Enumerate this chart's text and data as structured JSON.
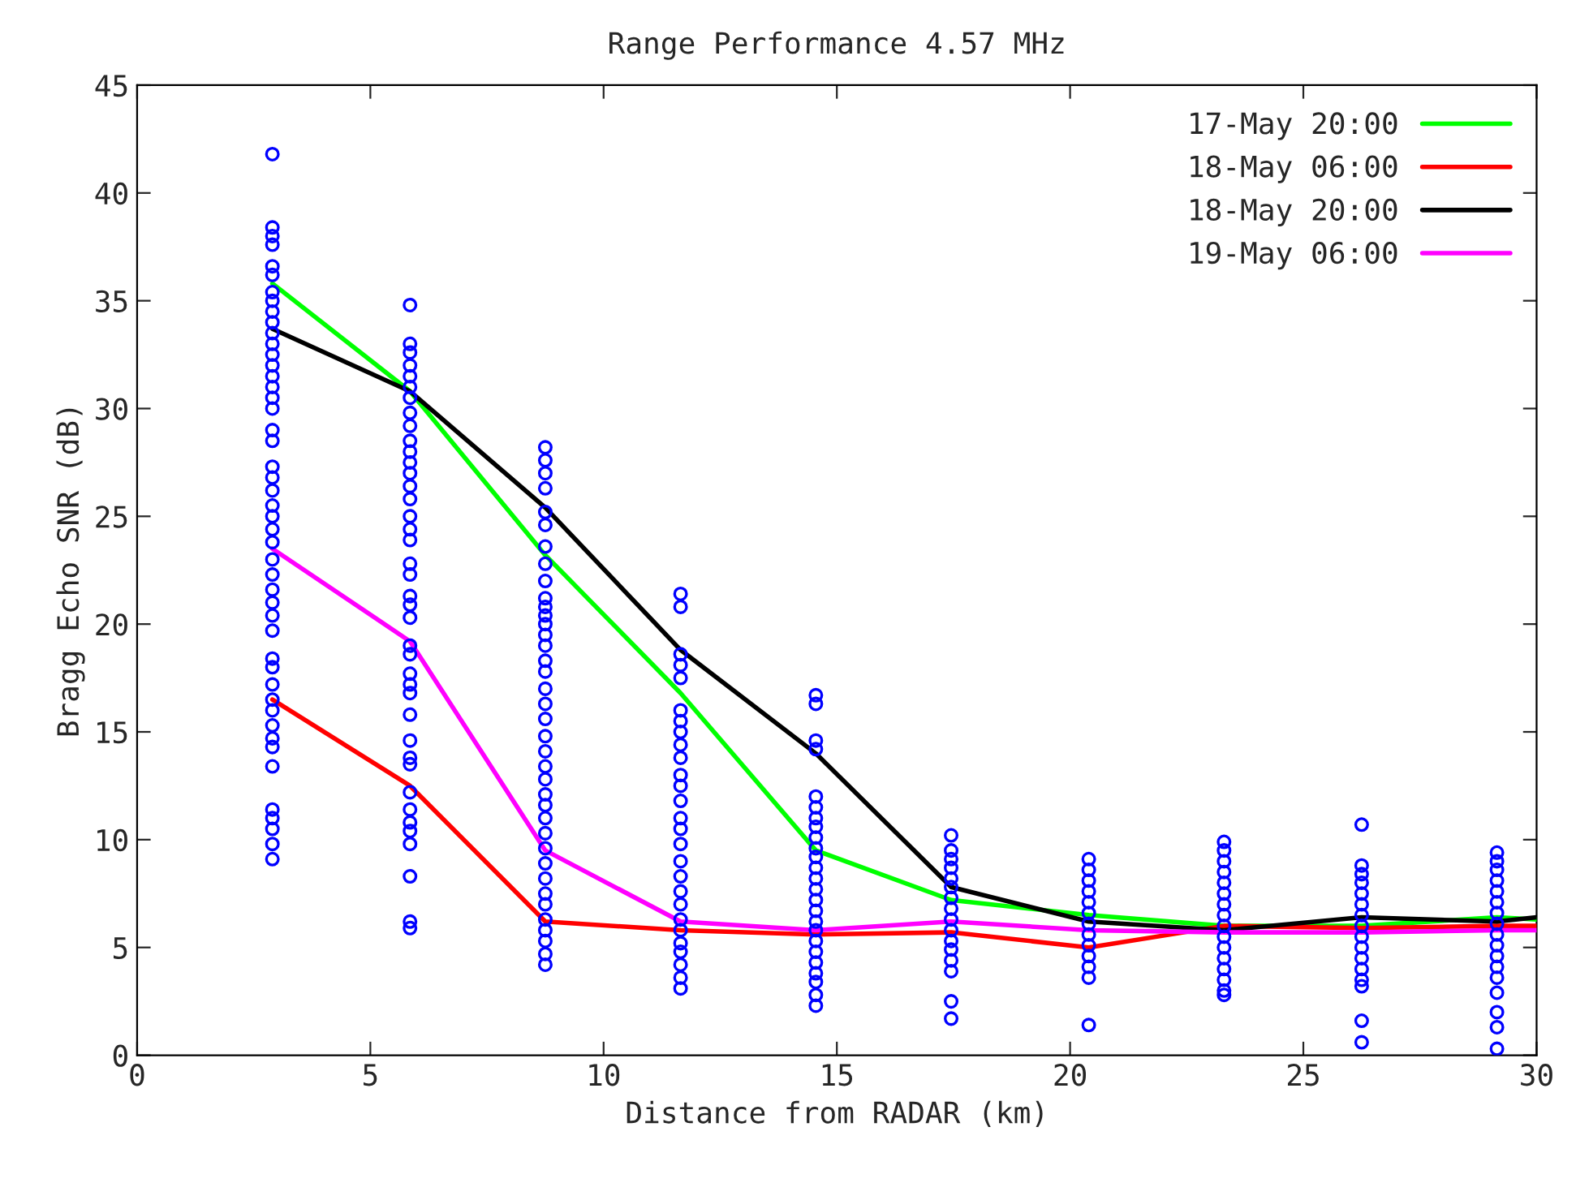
{
  "chart_data": {
    "type": "line",
    "title": "Range Performance 4.57 MHz",
    "xlabel": "Distance from RADAR (km)",
    "ylabel": "Bragg Echo SNR (dB)",
    "xlim": [
      0,
      30
    ],
    "ylim": [
      0,
      45
    ],
    "xticks": [
      0,
      5,
      10,
      15,
      20,
      25,
      30
    ],
    "yticks": [
      0,
      5,
      10,
      15,
      20,
      25,
      30,
      35,
      40,
      45
    ],
    "grid": false,
    "legend": "top right",
    "series": [
      {
        "type": "scatter",
        "marker": "circle",
        "color": "#0000ff",
        "x": [
          2.9,
          2.9,
          2.9,
          2.9,
          2.9,
          2.9,
          2.9,
          2.9,
          2.9,
          2.9,
          2.9,
          2.9,
          2.9,
          2.9,
          2.9,
          2.9,
          2.9,
          2.9,
          2.9,
          2.9,
          2.9,
          2.9,
          2.9,
          2.9,
          2.9,
          2.9,
          2.9,
          2.9,
          2.9,
          2.9,
          2.9,
          2.9,
          2.9,
          2.9,
          2.9,
          2.9,
          2.9,
          2.9,
          2.9,
          2.9,
          2.9,
          2.9,
          2.9,
          2.9,
          2.9,
          2.9,
          2.9,
          5.85,
          5.85,
          5.85,
          5.85,
          5.85,
          5.85,
          5.85,
          5.85,
          5.85,
          5.85,
          5.85,
          5.85,
          5.85,
          5.85,
          5.85,
          5.85,
          5.85,
          5.85,
          5.85,
          5.85,
          5.85,
          5.85,
          5.85,
          5.85,
          5.85,
          5.85,
          5.85,
          5.85,
          5.85,
          5.85,
          5.85,
          5.85,
          5.85,
          5.85,
          5.85,
          5.85,
          5.85,
          5.85,
          5.85,
          5.85,
          8.75,
          8.75,
          8.75,
          8.75,
          8.75,
          8.75,
          8.75,
          8.75,
          8.75,
          8.75,
          8.75,
          8.75,
          8.75,
          8.75,
          8.75,
          8.75,
          8.75,
          8.75,
          8.75,
          8.75,
          8.75,
          8.75,
          8.75,
          8.75,
          8.75,
          8.75,
          8.75,
          8.75,
          8.75,
          8.75,
          8.75,
          8.75,
          8.75,
          8.75,
          8.75,
          8.75,
          8.75,
          8.75,
          11.65,
          11.65,
          11.65,
          11.65,
          11.65,
          11.65,
          11.65,
          11.65,
          11.65,
          11.65,
          11.65,
          11.65,
          11.65,
          11.65,
          11.65,
          11.65,
          11.65,
          11.65,
          11.65,
          11.65,
          11.65,
          11.65,
          11.65,
          11.65,
          11.65,
          11.65,
          11.65,
          14.55,
          14.55,
          14.55,
          14.55,
          14.55,
          14.55,
          14.55,
          14.55,
          14.55,
          14.55,
          14.55,
          14.55,
          14.55,
          14.55,
          14.55,
          14.55,
          14.55,
          14.55,
          14.55,
          14.55,
          14.55,
          14.55,
          14.55,
          14.55,
          14.55,
          17.45,
          17.45,
          17.45,
          17.45,
          17.45,
          17.45,
          17.45,
          17.45,
          17.45,
          17.45,
          17.45,
          17.45,
          17.45,
          17.45,
          17.45,
          17.45,
          20.4,
          20.4,
          20.4,
          20.4,
          20.4,
          20.4,
          20.4,
          20.4,
          20.4,
          20.4,
          20.4,
          20.4,
          20.4,
          23.3,
          23.3,
          23.3,
          23.3,
          23.3,
          23.3,
          23.3,
          23.3,
          23.3,
          23.3,
          23.3,
          23.3,
          23.3,
          23.3,
          23.3,
          23.3,
          26.25,
          26.25,
          26.25,
          26.25,
          26.25,
          26.25,
          26.25,
          26.25,
          26.25,
          26.25,
          26.25,
          26.25,
          26.25,
          26.25,
          26.25,
          26.25,
          29.15,
          29.15,
          29.15,
          29.15,
          29.15,
          29.15,
          29.15,
          29.15,
          29.15,
          29.15,
          29.15,
          29.15,
          29.15,
          29.15,
          29.15,
          29.15,
          29.15
        ],
        "values": [
          41.8,
          38.4,
          38.0,
          37.6,
          36.6,
          36.2,
          35.4,
          35.0,
          34.5,
          34.0,
          33.5,
          33.0,
          32.5,
          32.0,
          31.5,
          31.0,
          30.5,
          30.0,
          29.0,
          28.5,
          27.3,
          26.8,
          26.2,
          25.5,
          25.0,
          24.4,
          23.8,
          23.0,
          22.3,
          21.6,
          21.0,
          20.4,
          19.7,
          18.4,
          18.0,
          17.2,
          16.5,
          16.0,
          15.3,
          14.7,
          14.3,
          13.4,
          11.4,
          11.0,
          10.5,
          9.8,
          9.1,
          34.8,
          33.0,
          32.6,
          32.0,
          31.5,
          31.0,
          30.5,
          29.8,
          29.2,
          28.5,
          28.0,
          27.5,
          27.0,
          26.4,
          25.8,
          25.0,
          24.4,
          23.9,
          22.8,
          22.3,
          21.3,
          20.9,
          20.3,
          19.0,
          18.6,
          17.7,
          17.2,
          16.8,
          15.8,
          14.6,
          13.8,
          13.5,
          12.2,
          11.4,
          10.8,
          10.4,
          9.8,
          8.3,
          6.2,
          5.9,
          28.2,
          27.6,
          27.0,
          26.3,
          25.2,
          24.6,
          23.6,
          22.8,
          22.0,
          21.2,
          20.8,
          20.4,
          20.0,
          19.5,
          19.0,
          18.3,
          17.8,
          17.0,
          16.3,
          15.6,
          14.8,
          14.1,
          13.4,
          12.8,
          12.1,
          11.6,
          11.0,
          10.3,
          9.6,
          8.9,
          8.2,
          7.5,
          7.0,
          6.3,
          5.8,
          5.3,
          4.7,
          4.2,
          21.4,
          20.8,
          18.6,
          18.1,
          17.5,
          16.0,
          15.5,
          15.0,
          14.4,
          13.8,
          13.0,
          12.5,
          11.8,
          11.0,
          10.5,
          9.8,
          9.0,
          8.3,
          7.6,
          7.0,
          6.3,
          5.8,
          5.2,
          4.8,
          4.2,
          3.6,
          3.1,
          16.7,
          16.3,
          14.6,
          14.2,
          12.0,
          11.5,
          11.0,
          10.6,
          10.1,
          9.6,
          9.2,
          8.7,
          8.2,
          7.7,
          7.2,
          6.7,
          6.2,
          5.8,
          5.3,
          4.8,
          4.3,
          3.8,
          3.4,
          2.8,
          2.3,
          10.2,
          9.5,
          9.1,
          8.7,
          8.2,
          7.8,
          7.3,
          6.8,
          6.3,
          5.8,
          5.3,
          4.9,
          4.4,
          3.9,
          2.5,
          1.7,
          9.1,
          8.6,
          8.1,
          7.6,
          7.1,
          6.6,
          6.1,
          5.6,
          5.1,
          4.6,
          4.1,
          3.6,
          1.4,
          9.9,
          9.5,
          9.0,
          8.5,
          8.0,
          7.5,
          7.0,
          6.5,
          6.0,
          5.5,
          5.0,
          4.5,
          4.0,
          3.5,
          3.0,
          2.8,
          10.7,
          8.8,
          8.4,
          8.0,
          7.5,
          7.0,
          6.5,
          6.0,
          5.5,
          5.0,
          4.5,
          4.0,
          3.5,
          3.2,
          1.6,
          0.6,
          9.4,
          9.0,
          8.6,
          8.1,
          7.6,
          7.1,
          6.6,
          6.1,
          5.6,
          5.1,
          4.6,
          4.1,
          3.6,
          2.9,
          2.0,
          1.3,
          0.3
        ]
      },
      {
        "name": "17-May 20:00",
        "color": "#00ff00",
        "x": [
          2.9,
          5.85,
          8.75,
          11.65,
          14.55,
          17.45,
          20.4,
          23.3,
          26.25,
          29.15,
          30
        ],
        "values": [
          35.8,
          30.8,
          23.2,
          16.8,
          9.5,
          7.2,
          6.5,
          6.0,
          6.0,
          6.4,
          6.3
        ]
      },
      {
        "name": "18-May 06:00",
        "color": "#ff0000",
        "x": [
          2.9,
          5.85,
          8.75,
          11.65,
          14.55,
          17.45,
          20.4,
          23.3,
          26.25,
          29.15,
          30
        ],
        "values": [
          16.5,
          12.5,
          6.2,
          5.8,
          5.6,
          5.7,
          5.0,
          6.0,
          5.9,
          6.0,
          6.0
        ]
      },
      {
        "name": "18-May 20:00",
        "color": "#000000",
        "x": [
          2.9,
          5.85,
          8.75,
          11.65,
          14.55,
          17.45,
          20.4,
          23.3,
          26.25,
          29.15,
          30
        ],
        "values": [
          33.7,
          30.8,
          25.4,
          18.8,
          14.0,
          7.8,
          6.2,
          5.8,
          6.4,
          6.2,
          6.4
        ]
      },
      {
        "name": "19-May 06:00",
        "color": "#ff00ff",
        "x": [
          2.9,
          5.85,
          8.75,
          11.65,
          14.55,
          17.45,
          20.4,
          23.3,
          26.25,
          29.15,
          30
        ],
        "values": [
          23.5,
          19.2,
          9.5,
          6.2,
          5.8,
          6.2,
          5.8,
          5.7,
          5.7,
          5.8,
          5.8
        ]
      }
    ]
  }
}
